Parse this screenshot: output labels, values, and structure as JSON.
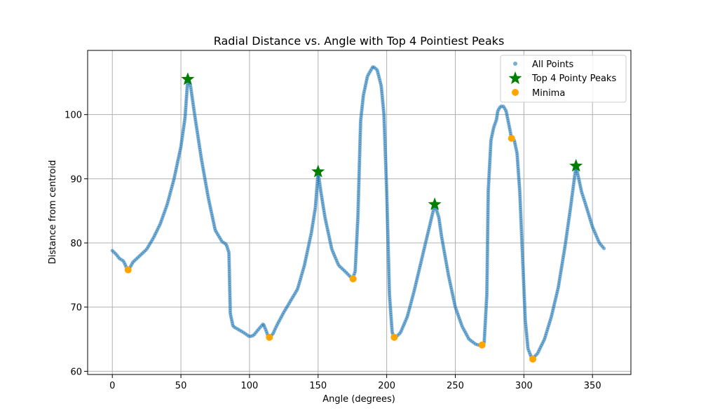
{
  "chart_data": {
    "type": "scatter",
    "title": "Radial Distance vs. Angle with Top 4 Pointiest Peaks",
    "xlabel": "Angle (degrees)",
    "ylabel": "Distance from centroid",
    "xlim": [
      -18,
      378
    ],
    "ylim": [
      59.5,
      110
    ],
    "xticks": [
      0,
      50,
      100,
      150,
      200,
      250,
      300,
      350
    ],
    "yticks": [
      60,
      70,
      80,
      90,
      100
    ],
    "grid": true,
    "legend_position": "top-right",
    "colors": {
      "all_points": "#1f77b4",
      "peaks": "#008000",
      "minima": "#ffa500"
    },
    "curve_anchors": [
      [
        0,
        78.8
      ],
      [
        3,
        78.2
      ],
      [
        5,
        77.6
      ],
      [
        8,
        77.2
      ],
      [
        9,
        76.8
      ],
      [
        11,
        75.8
      ],
      [
        13,
        76.2
      ],
      [
        15,
        77.0
      ],
      [
        20,
        78.0
      ],
      [
        25,
        79.0
      ],
      [
        30,
        80.8
      ],
      [
        35,
        83.0
      ],
      [
        40,
        86.0
      ],
      [
        45,
        90.0
      ],
      [
        50,
        95.0
      ],
      [
        53,
        99.5
      ],
      [
        55,
        105.5
      ],
      [
        57,
        104.5
      ],
      [
        60,
        100.0
      ],
      [
        65,
        93.0
      ],
      [
        70,
        87.0
      ],
      [
        75,
        82.0
      ],
      [
        80,
        80.2
      ],
      [
        83,
        79.8
      ],
      [
        85,
        78.5
      ],
      [
        86,
        69.0
      ],
      [
        88,
        67.0
      ],
      [
        92,
        66.5
      ],
      [
        96,
        66.0
      ],
      [
        100,
        65.4
      ],
      [
        103,
        65.6
      ],
      [
        106,
        66.4
      ],
      [
        110,
        67.4
      ],
      [
        112,
        66.4
      ],
      [
        114,
        65.2
      ],
      [
        117,
        65.8
      ],
      [
        120,
        67.2
      ],
      [
        125,
        69.2
      ],
      [
        130,
        71.0
      ],
      [
        135,
        72.8
      ],
      [
        140,
        76.5
      ],
      [
        145,
        81.5
      ],
      [
        148,
        85.5
      ],
      [
        150,
        91.0
      ],
      [
        152,
        88.0
      ],
      [
        155,
        84.0
      ],
      [
        160,
        79.0
      ],
      [
        165,
        76.5
      ],
      [
        170,
        75.5
      ],
      [
        175,
        74.4
      ],
      [
        177,
        75.5
      ],
      [
        179,
        84.0
      ],
      [
        181,
        99.0
      ],
      [
        183,
        103.0
      ],
      [
        186,
        106.0
      ],
      [
        190,
        107.5
      ],
      [
        193,
        107.0
      ],
      [
        196,
        104.5
      ],
      [
        198,
        100.0
      ],
      [
        200,
        88.0
      ],
      [
        202,
        72.0
      ],
      [
        204,
        66.0
      ],
      [
        206,
        65.2
      ],
      [
        210,
        66.0
      ],
      [
        215,
        68.5
      ],
      [
        220,
        72.5
      ],
      [
        225,
        77.0
      ],
      [
        230,
        81.5
      ],
      [
        235,
        86.0
      ],
      [
        238,
        84.0
      ],
      [
        240,
        81.0
      ],
      [
        245,
        75.0
      ],
      [
        250,
        70.0
      ],
      [
        255,
        67.0
      ],
      [
        260,
        65.0
      ],
      [
        265,
        64.2
      ],
      [
        269,
        64.0
      ],
      [
        271,
        64.3
      ],
      [
        273,
        72.0
      ],
      [
        274,
        88.0
      ],
      [
        276,
        96.0
      ],
      [
        278,
        98.0
      ],
      [
        280,
        99.2
      ],
      [
        281,
        100.6
      ],
      [
        283,
        101.3
      ],
      [
        285,
        101.3
      ],
      [
        287,
        100.6
      ],
      [
        289,
        98.5
      ],
      [
        291,
        96.3
      ],
      [
        293,
        96.0
      ],
      [
        295,
        94.0
      ],
      [
        297,
        88.0
      ],
      [
        299,
        78.0
      ],
      [
        301,
        68.0
      ],
      [
        303,
        63.5
      ],
      [
        306,
        61.9
      ],
      [
        310,
        62.8
      ],
      [
        315,
        65.0
      ],
      [
        320,
        68.5
      ],
      [
        325,
        73.0
      ],
      [
        330,
        79.5
      ],
      [
        334,
        85.5
      ],
      [
        338,
        92.0
      ],
      [
        342,
        88.0
      ],
      [
        345,
        86.0
      ],
      [
        350,
        82.5
      ],
      [
        355,
        80.0
      ],
      [
        359,
        79.0
      ]
    ],
    "series": [
      {
        "name": "All Points",
        "marker": "circle"
      },
      {
        "name": "Top 4 Pointy Peaks",
        "marker": "star",
        "points": [
          [
            55,
            105.5
          ],
          [
            150,
            91.1
          ],
          [
            235,
            86.0
          ],
          [
            338,
            92.0
          ]
        ]
      },
      {
        "name": "Minima",
        "marker": "circle",
        "points": [
          [
            11.5,
            75.8
          ],
          [
            114.5,
            65.3
          ],
          [
            175.5,
            74.4
          ],
          [
            205.5,
            65.3
          ],
          [
            269.5,
            64.1
          ],
          [
            291,
            96.3
          ],
          [
            306.5,
            61.9
          ]
        ]
      }
    ]
  }
}
